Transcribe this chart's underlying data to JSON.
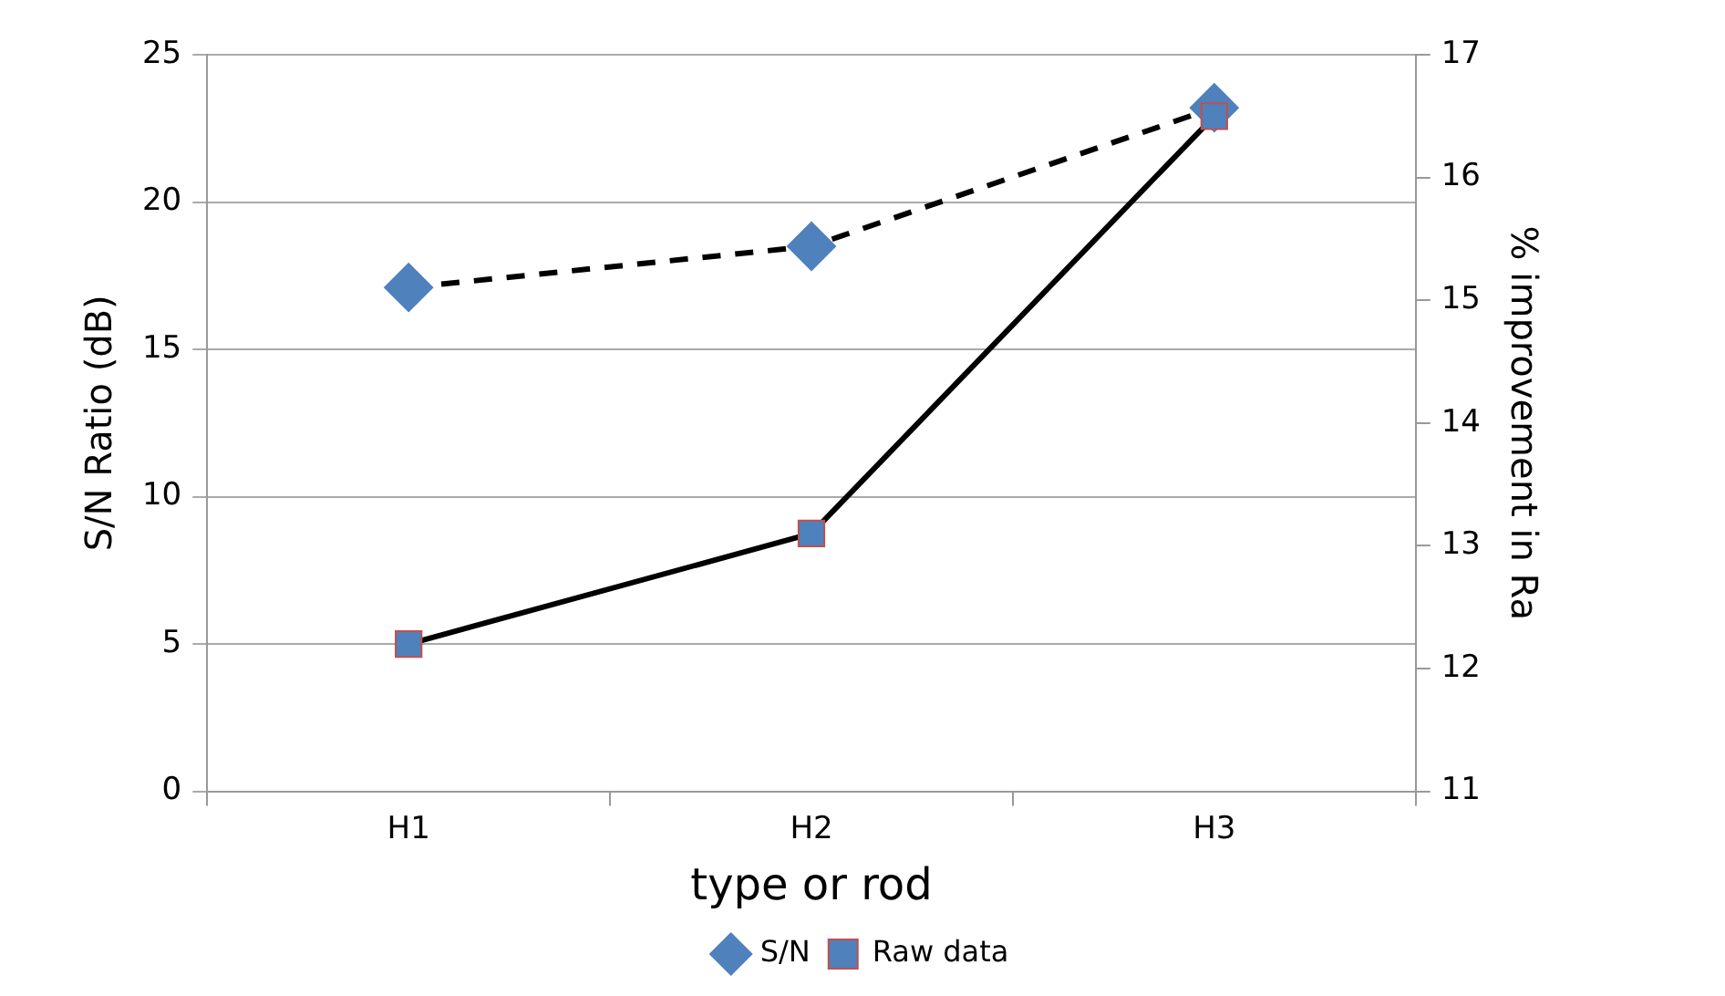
{
  "chart_data": {
    "type": "line",
    "xlabel": "type or rod",
    "ylabel": "S/N Ratio (dB)",
    "y2label": "% improvement in Ra",
    "categories": [
      "H1",
      "H2",
      "H3"
    ],
    "series": [
      {
        "name": "S/N",
        "color": "#4f81bd",
        "values": [
          17.1,
          18.5,
          23.2
        ],
        "marker": "diamond",
        "line_style": "dashed"
      },
      {
        "name": "Raw data",
        "color": "#4f81bd",
        "values": [
          12.2,
          13.1,
          16.5
        ],
        "axis": "y2",
        "marker": "square",
        "line_style": "solid"
      }
    ],
    "ylim": [
      0,
      25
    ],
    "yticks": [
      0,
      5,
      10,
      15,
      20,
      25
    ],
    "y2lim": [
      11,
      17
    ],
    "y2ticks": [
      11,
      12,
      13,
      14,
      15,
      16,
      17
    ],
    "grid": "y",
    "legend": "bottom"
  }
}
